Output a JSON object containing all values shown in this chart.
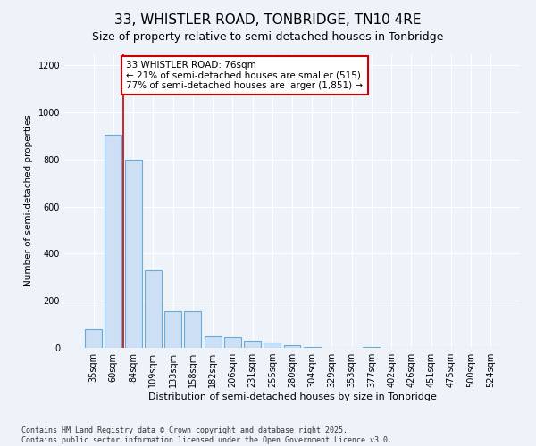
{
  "title1": "33, WHISTLER ROAD, TONBRIDGE, TN10 4RE",
  "title2": "Size of property relative to semi-detached houses in Tonbridge",
  "xlabel": "Distribution of semi-detached houses by size in Tonbridge",
  "ylabel": "Number of semi-detached properties",
  "categories": [
    "35sqm",
    "60sqm",
    "84sqm",
    "109sqm",
    "133sqm",
    "158sqm",
    "182sqm",
    "206sqm",
    "231sqm",
    "255sqm",
    "280sqm",
    "304sqm",
    "329sqm",
    "353sqm",
    "377sqm",
    "402sqm",
    "426sqm",
    "451sqm",
    "475sqm",
    "500sqm",
    "524sqm"
  ],
  "values": [
    80,
    905,
    800,
    330,
    155,
    155,
    50,
    45,
    30,
    22,
    10,
    5,
    0,
    0,
    5,
    0,
    0,
    0,
    0,
    0,
    0
  ],
  "bar_color": "#ccdff5",
  "bar_edge_color": "#6aaad4",
  "vline_x": 1.5,
  "vline_color": "#cc0000",
  "annotation_line1": "33 WHISTLER ROAD: 76sqm",
  "annotation_line2": "← 21% of semi-detached houses are smaller (515)",
  "annotation_line3": "77% of semi-detached houses are larger (1,851) →",
  "ylim": [
    0,
    1250
  ],
  "yticks": [
    0,
    200,
    400,
    600,
    800,
    1000,
    1200
  ],
  "footer_text": "Contains HM Land Registry data © Crown copyright and database right 2025.\nContains public sector information licensed under the Open Government Licence v3.0.",
  "bg_color": "#eef2f9",
  "plot_bg_color": "#eef2f9",
  "grid_color": "#ffffff",
  "title1_fontsize": 11,
  "title2_fontsize": 9,
  "xlabel_fontsize": 8,
  "ylabel_fontsize": 7.5,
  "tick_fontsize": 7,
  "annotation_fontsize": 7.5,
  "footer_fontsize": 6
}
